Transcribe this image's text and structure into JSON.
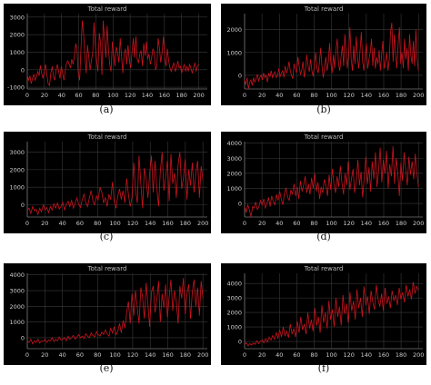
{
  "chart_data": [
    {
      "type": "line",
      "title": "Total reward",
      "caption": "(a)",
      "xlim": [
        0,
        210
      ],
      "ylim": [
        -1100,
        3200
      ],
      "xticks": [
        0,
        20,
        40,
        60,
        80,
        100,
        120,
        140,
        160,
        180,
        200
      ],
      "yticks": [
        -1000,
        0,
        1000,
        2000,
        3000
      ],
      "series": [
        {
          "values": [
            -300,
            -600,
            -350,
            -800,
            -500,
            -250,
            -600,
            -400,
            -100,
            -350,
            250,
            -200,
            -500,
            -100,
            300,
            -300,
            -800,
            -900,
            -200,
            200,
            -400,
            -600,
            0,
            300,
            -100,
            -500,
            200,
            -200,
            -600,
            -100,
            400,
            500,
            300,
            100,
            600,
            300,
            800,
            1500,
            1100,
            -200,
            -600,
            1200,
            2800,
            2100,
            800,
            -200,
            1400,
            700,
            0,
            500,
            1000,
            2700,
            1300,
            500,
            -100,
            2100,
            1500,
            -300,
            2800,
            1800,
            700,
            2500,
            1200,
            300,
            -100,
            1600,
            900,
            200,
            1300,
            1000,
            400,
            1800,
            800,
            -200,
            900,
            1200,
            300,
            1400,
            500,
            100,
            1000,
            1800,
            700,
            1900,
            600,
            400,
            900,
            1100,
            200,
            1500,
            800,
            1600,
            600,
            900,
            300,
            700,
            1200,
            1000,
            0,
            200,
            1800,
            1200,
            400,
            1000,
            1900,
            700,
            200,
            1200,
            500,
            100,
            -100,
            200,
            400,
            -100,
            100,
            500,
            100,
            200,
            -200,
            100,
            300,
            -100,
            200,
            -100,
            300,
            100,
            -200,
            100,
            400,
            -100,
            200,
            300
          ]
        }
      ]
    },
    {
      "type": "line",
      "title": "Total reward",
      "caption": "(b)",
      "xlim": [
        0,
        205
      ],
      "ylim": [
        -600,
        2700
      ],
      "xticks": [
        0,
        20,
        40,
        60,
        80,
        100,
        120,
        140,
        160,
        180,
        200
      ],
      "yticks": [
        0,
        1000,
        2000
      ],
      "series": [
        {
          "values": [
            -200,
            -400,
            -100,
            -600,
            -300,
            -200,
            -450,
            -100,
            -300,
            -150,
            50,
            -250,
            -100,
            0,
            -200,
            100,
            -100,
            0,
            -300,
            100,
            -50,
            200,
            -100,
            50,
            150,
            -100,
            0,
            300,
            -50,
            100,
            200,
            -100,
            400,
            100,
            250,
            600,
            200,
            0,
            -150,
            500,
            300,
            100,
            800,
            400,
            50,
            200,
            600,
            -100,
            300,
            900,
            400,
            150,
            700,
            200,
            -50,
            500,
            1000,
            300,
            100,
            600,
            1200,
            400,
            -100,
            300,
            800,
            200,
            600,
            1400,
            500,
            100,
            900,
            300,
            1100,
            1600,
            500,
            200,
            800,
            1300,
            400,
            1800,
            900,
            300,
            1000,
            2100,
            700,
            200,
            1300,
            500,
            1700,
            800,
            300,
            1100,
            1900,
            600,
            200,
            900,
            1400,
            300,
            700,
            1000,
            1600,
            400,
            1200,
            300,
            800,
            500,
            1100,
            200,
            900,
            1500,
            300,
            600,
            1000,
            200,
            700,
            1900,
            2300,
            600,
            1800,
            900,
            300,
            1400,
            2100,
            500,
            1000,
            300,
            1600,
            700,
            1200,
            200,
            1800,
            900,
            500,
            1500,
            400,
            2000,
            700,
            200
          ]
        }
      ]
    },
    {
      "type": "line",
      "title": "Total reward",
      "caption": "(c)",
      "xlim": [
        0,
        205
      ],
      "ylim": [
        -700,
        3600
      ],
      "xticks": [
        0,
        20,
        40,
        60,
        80,
        100,
        120,
        140,
        160,
        180,
        200
      ],
      "yticks": [
        0,
        1000,
        2000,
        3000
      ],
      "series": [
        {
          "values": [
            -300,
            -200,
            -500,
            -100,
            -350,
            -250,
            -550,
            -200,
            -400,
            0,
            -300,
            -150,
            -450,
            -100,
            -300,
            50,
            -200,
            100,
            -250,
            -100,
            150,
            -300,
            0,
            200,
            -100,
            250,
            -200,
            100,
            400,
            0,
            -150,
            300,
            600,
            100,
            -100,
            400,
            800,
            200,
            0,
            500,
            300,
            1000,
            700,
            100,
            400,
            -100,
            600,
            300,
            1300,
            200,
            -200,
            500,
            900,
            300,
            800,
            100,
            1500,
            600,
            -100,
            400,
            2400,
            900,
            100,
            2800,
            1200,
            -200,
            2100,
            1500,
            400,
            1800,
            2800,
            700,
            2500,
            1000,
            -100,
            1900,
            3000,
            800,
            1600,
            2500,
            200,
            2900,
            1200,
            1800,
            400,
            2300,
            3000,
            900,
            1500,
            2600,
            300,
            2000,
            1100,
            2400,
            700,
            1800,
            2500,
            400,
            2200,
            1400
          ]
        }
      ]
    },
    {
      "type": "line",
      "title": "Total reward",
      "caption": "(d)",
      "xlim": [
        0,
        205
      ],
      "ylim": [
        -900,
        4100
      ],
      "xticks": [
        0,
        20,
        40,
        60,
        80,
        100,
        120,
        140,
        160,
        180,
        200
      ],
      "yticks": [
        0,
        1000,
        2000,
        3000,
        4000
      ],
      "series": [
        {
          "values": [
            -200,
            -600,
            -100,
            -400,
            -900,
            -200,
            -300,
            100,
            -400,
            -200,
            200,
            -100,
            300,
            -300,
            0,
            400,
            -200,
            500,
            100,
            -100,
            600,
            200,
            800,
            300,
            -100,
            700,
            1000,
            400,
            200,
            900,
            600,
            1300,
            500,
            1100,
            300,
            1500,
            800,
            1200,
            1800,
            700,
            1300,
            600,
            1700,
            1000,
            2000,
            800,
            1400,
            300,
            1100,
            700,
            1600,
            1200,
            500,
            1900,
            900,
            2300,
            1300,
            700,
            1800,
            1100,
            2500,
            1400,
            600,
            2000,
            1200,
            2800,
            900,
            1600,
            2300,
            700,
            1500,
            2900,
            1200,
            2100,
            400,
            1700,
            3100,
            1300,
            2400,
            800,
            2800,
            1600,
            3400,
            1100,
            2200,
            3700,
            1400,
            2900,
            2000,
            3500,
            1000,
            2600,
            1800,
            3800,
            1300,
            3000,
            2100,
            500,
            2700,
            1500,
            3400,
            2200,
            1200,
            3100,
            1900,
            2800,
            1600,
            3300,
            2000,
            1100
          ]
        }
      ]
    },
    {
      "type": "line",
      "title": "Total reward",
      "caption": "(e)",
      "xlim": [
        0,
        205
      ],
      "ylim": [
        -700,
        4100
      ],
      "xticks": [
        0,
        20,
        40,
        60,
        80,
        100,
        120,
        140,
        160,
        180,
        200
      ],
      "yticks": [
        0,
        1000,
        2000,
        3000,
        4000
      ],
      "series": [
        {
          "values": [
            -200,
            -300,
            -100,
            -400,
            -200,
            -300,
            -100,
            -350,
            -200,
            -250,
            -100,
            -300,
            -150,
            -200,
            0,
            -250,
            -100,
            -200,
            50,
            -150,
            -100,
            0,
            -200,
            100,
            -100,
            0,
            150,
            -100,
            50,
            200,
            0,
            100,
            -50,
            250,
            100,
            0,
            300,
            150,
            50,
            400,
            200,
            100,
            350,
            200,
            500,
            250,
            100,
            600,
            300,
            700,
            200,
            400,
            900,
            300,
            1100,
            600,
            1600,
            2300,
            900,
            2800,
            1400,
            3000,
            1900,
            900,
            3200,
            2600,
            1200,
            3500,
            2100,
            700,
            2900,
            3300,
            1600,
            2400,
            3600,
            1000,
            2800,
            1900,
            3400,
            1300,
            2600,
            3700,
            1700,
            3000,
            2300,
            900,
            3300,
            2500,
            3800,
            1500,
            2800,
            3400,
            1200,
            2900,
            3700,
            2000,
            3200,
            1400,
            3600,
            2500
          ]
        }
      ]
    },
    {
      "type": "line",
      "title": "Total reward",
      "caption": "(f)",
      "xlim": [
        0,
        205
      ],
      "ylim": [
        -500,
        4700
      ],
      "xticks": [
        0,
        20,
        40,
        60,
        80,
        100,
        120,
        140,
        160,
        180,
        200
      ],
      "yticks": [
        0,
        1000,
        2000,
        3000,
        4000
      ],
      "series": [
        {
          "values": [
            -200,
            -100,
            -300,
            -150,
            -250,
            -100,
            -200,
            50,
            -150,
            0,
            100,
            -100,
            200,
            -50,
            300,
            100,
            400,
            150,
            600,
            200,
            800,
            300,
            1000,
            400,
            700,
            250,
            1200,
            500,
            900,
            300,
            1400,
            600,
            1700,
            800,
            1200,
            500,
            2000,
            900,
            1500,
            700,
            2300,
            1100,
            1700,
            600,
            2500,
            1300,
            2000,
            900,
            2800,
            1500,
            2200,
            1000,
            3000,
            1700,
            2400,
            1100,
            3200,
            1900,
            2600,
            1300,
            3400,
            2100,
            2800,
            1500,
            3600,
            2300,
            3000,
            1700,
            3800,
            2500,
            3100,
            1900,
            3500,
            2700,
            2200,
            3900,
            2900,
            2400,
            3300,
            2100,
            3700,
            2600,
            3100,
            2300,
            3500,
            2800,
            3200,
            2500,
            3700,
            2900,
            3400,
            2700,
            3900,
            3100,
            3600,
            2900,
            4100,
            3300,
            3800,
            3500
          ]
        }
      ]
    }
  ]
}
